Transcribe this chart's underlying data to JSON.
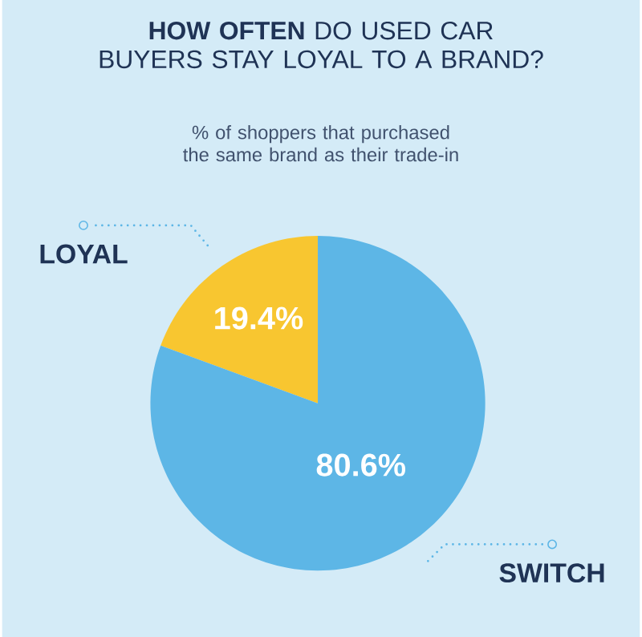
{
  "chart_data": {
    "type": "pie",
    "title": "**HOW OFTEN** DO USED CAR BUYERS STAY LOYAL TO A BRAND?",
    "subtitle": "% of shoppers that purchased the same brand as their trade-in",
    "categories": [
      "LOYAL",
      "SWITCH"
    ],
    "values": [
      19.4,
      80.6
    ],
    "colors": [
      "#f8c630",
      "#5db6e6"
    ],
    "value_labels": [
      "19.4%",
      "80.6%"
    ]
  }
}
